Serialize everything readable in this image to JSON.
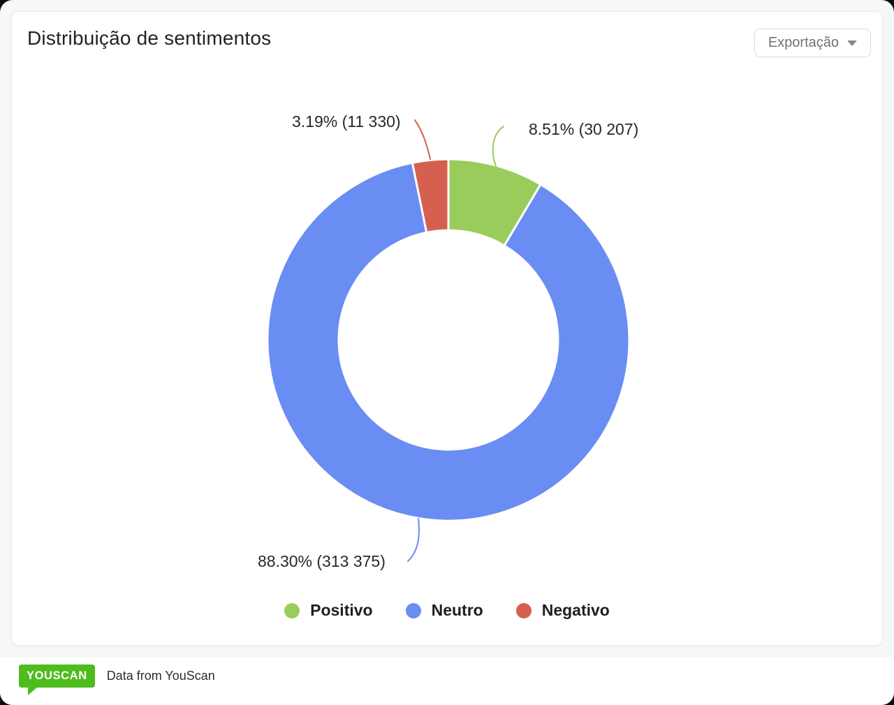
{
  "header": {
    "title": "Distribuição de sentimentos",
    "export_label": "Exportação"
  },
  "chart_data": {
    "type": "pie",
    "donut": true,
    "title": "Distribuição de sentimentos",
    "legend_position": "bottom",
    "slices": [
      {
        "label": "Positivo",
        "percent": 8.51,
        "count": 30207,
        "count_display": "30 207",
        "label_display": "8.51% (30 207)",
        "color": "#9ACC5B"
      },
      {
        "label": "Neutro",
        "percent": 88.3,
        "count": 313375,
        "count_display": "313 375",
        "label_display": "88.30% (313 375)",
        "color": "#698DF2"
      },
      {
        "label": "Negativo",
        "percent": 3.19,
        "count": 11330,
        "count_display": "11 330",
        "label_display": "3.19% (11 330)",
        "color": "#D6604F"
      }
    ]
  },
  "footer": {
    "logo_text": "YOUSCAN",
    "attribution": "Data from YouScan",
    "logo_color": "#4DBC1C"
  }
}
